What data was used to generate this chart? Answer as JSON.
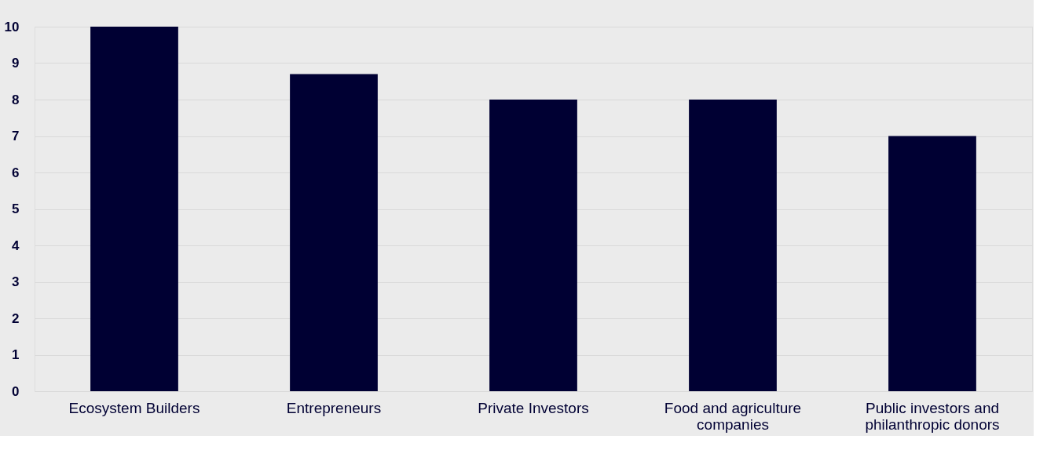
{
  "chart_data": {
    "type": "bar",
    "categories": [
      "Ecosystem Builders",
      "Entrepreneurs",
      "Private Investors",
      "Food and agriculture companies",
      "Public investors and philanthropic donors"
    ],
    "values": [
      10,
      8.7,
      8,
      8,
      7
    ],
    "color": "#000033",
    "ylim": [
      0,
      10
    ],
    "yticks": [
      0,
      1,
      2,
      3,
      4,
      5,
      6,
      7,
      8,
      9,
      10
    ],
    "grid": "y"
  }
}
